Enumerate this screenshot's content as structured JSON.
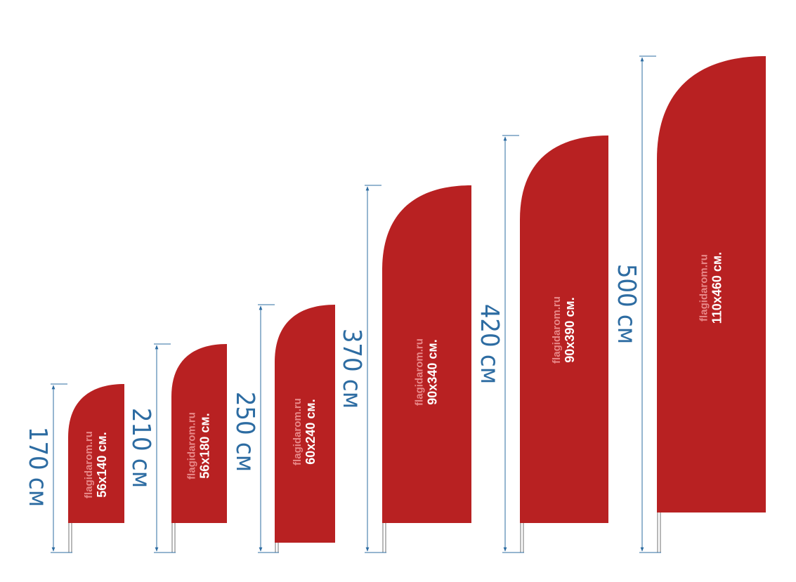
{
  "flags": [
    {
      "height": "170 см",
      "watermark": "flagidarom.ru",
      "size": "56x140 см."
    },
    {
      "height": "210 см",
      "watermark": "flagidarom.ru",
      "size": "56x180 см."
    },
    {
      "height": "250 см",
      "watermark": "flagidarom.ru",
      "size": "60x240 см."
    },
    {
      "height": "370 см",
      "watermark": "flagidarom.ru",
      "size": "90x340 см."
    },
    {
      "height": "420 см",
      "watermark": "flagidarom.ru",
      "size": "90x390 см."
    },
    {
      "height": "500 см",
      "watermark": "flagidarom.ru",
      "size": "110x460 см."
    }
  ]
}
